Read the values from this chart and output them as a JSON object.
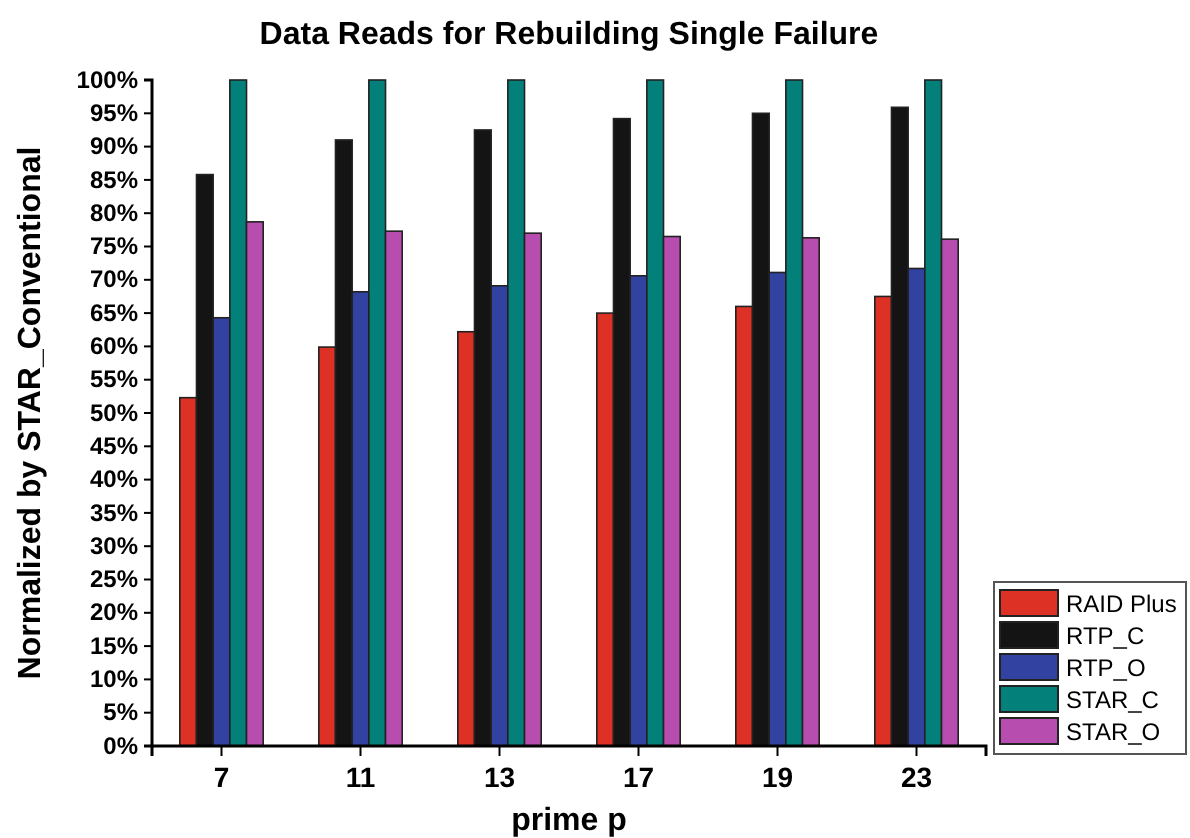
{
  "chart_data": {
    "type": "bar",
    "title": "Data Reads for Rebuilding Single Failure",
    "xlabel": "prime p",
    "ylabel": "Normalized by STAR_Conventional",
    "categories": [
      "7",
      "11",
      "13",
      "17",
      "19",
      "23"
    ],
    "series": [
      {
        "name": "RAID Plus",
        "color": "#dc3124",
        "values": [
          52.3,
          59.9,
          62.2,
          65.0,
          66.0,
          67.5
        ]
      },
      {
        "name": "RTP_C",
        "color": "#141414",
        "values": [
          85.8,
          91.0,
          92.5,
          94.2,
          95.0,
          95.9
        ]
      },
      {
        "name": "RTP_O",
        "color": "#3142a0",
        "values": [
          64.3,
          68.2,
          69.1,
          70.6,
          71.1,
          71.7
        ]
      },
      {
        "name": "STAR_C",
        "color": "#04807a",
        "values": [
          100,
          100,
          100,
          100,
          100,
          100
        ]
      },
      {
        "name": "STAR_O",
        "color": "#b84db0",
        "values": [
          78.7,
          77.3,
          77.0,
          76.5,
          76.3,
          76.1
        ]
      }
    ],
    "ylim": [
      0,
      100
    ],
    "yticks": [
      {
        "value": 0,
        "label": "0%"
      },
      {
        "value": 5,
        "label": "5%"
      },
      {
        "value": 10,
        "label": "10%"
      },
      {
        "value": 15,
        "label": "15%"
      },
      {
        "value": 20,
        "label": "20%"
      },
      {
        "value": 25,
        "label": "25%"
      },
      {
        "value": 30,
        "label": "30%"
      },
      {
        "value": 35,
        "label": "35%"
      },
      {
        "value": 40,
        "label": "40%"
      },
      {
        "value": 45,
        "label": "45%"
      },
      {
        "value": 50,
        "label": "50%"
      },
      {
        "value": 55,
        "label": "55%"
      },
      {
        "value": 60,
        "label": "60%"
      },
      {
        "value": 65,
        "label": "65%"
      },
      {
        "value": 70,
        "label": "70%"
      },
      {
        "value": 75,
        "label": "75%"
      },
      {
        "value": 80,
        "label": "80%"
      },
      {
        "value": 85,
        "label": "85%"
      },
      {
        "value": 90,
        "label": "90%"
      },
      {
        "value": 95,
        "label": "95%"
      },
      {
        "value": 100,
        "label": "100%"
      }
    ],
    "grid": false,
    "legend": "bottom right"
  }
}
